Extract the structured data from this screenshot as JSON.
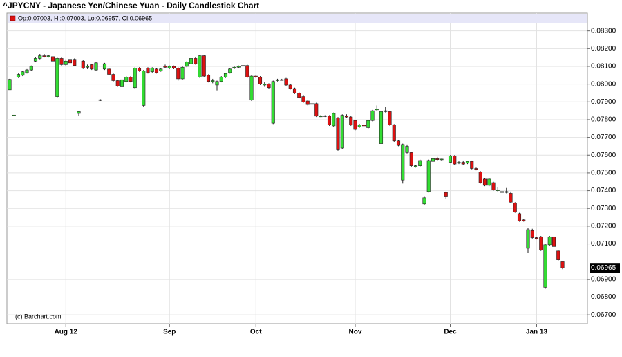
{
  "chart_data": {
    "type": "candlestick",
    "title": "^JPYCNY - Japanese Yen/Chinese Yuan - Daily Candlestick Chart",
    "ohlc_header": "Op:0.07003, Hi:0.07003, Lo:0.06957, Cl:0.06965",
    "watermark": "(c) Barchart.com",
    "up_color": "#33dd33",
    "down_color": "#dd1111",
    "grid": true,
    "ylim": [
      0.0665,
      0.084
    ],
    "yticks": [
      {
        "value": 0.083,
        "label": "0.08300"
      },
      {
        "value": 0.082,
        "label": "0.08200"
      },
      {
        "value": 0.081,
        "label": "0.08100"
      },
      {
        "value": 0.08,
        "label": "0.08000"
      },
      {
        "value": 0.079,
        "label": "0.07900"
      },
      {
        "value": 0.078,
        "label": "0.07800"
      },
      {
        "value": 0.077,
        "label": "0.07700"
      },
      {
        "value": 0.076,
        "label": "0.07600"
      },
      {
        "value": 0.075,
        "label": "0.07500"
      },
      {
        "value": 0.074,
        "label": "0.07400"
      },
      {
        "value": 0.073,
        "label": "0.07300"
      },
      {
        "value": 0.072,
        "label": "0.07200"
      },
      {
        "value": 0.071,
        "label": "0.07100"
      },
      {
        "value": 0.069,
        "label": "0.06900"
      },
      {
        "value": 0.068,
        "label": "0.06800"
      },
      {
        "value": 0.067,
        "label": "0.06700"
      }
    ],
    "last_price": {
      "value": 0.06965,
      "label": "0.06965"
    },
    "categories": [
      null,
      null,
      null,
      null,
      null,
      null,
      null,
      null,
      null,
      null,
      null,
      null,
      null,
      "Aug 12",
      null,
      null,
      null,
      null,
      null,
      null,
      null,
      null,
      null,
      null,
      null,
      null,
      null,
      null,
      null,
      null,
      null,
      null,
      null,
      null,
      null,
      null,
      null,
      "Sep",
      null,
      null,
      null,
      null,
      null,
      null,
      null,
      null,
      null,
      null,
      null,
      null,
      null,
      null,
      null,
      null,
      null,
      null,
      null,
      "Oct",
      null,
      null,
      null,
      null,
      null,
      null,
      null,
      null,
      null,
      null,
      null,
      null,
      null,
      null,
      null,
      null,
      null,
      null,
      null,
      null,
      null,
      null,
      "Nov",
      null,
      null,
      null,
      null,
      null,
      null,
      null,
      null,
      null,
      null,
      null,
      null,
      null,
      null,
      null,
      null,
      null,
      null,
      null,
      null,
      null,
      "Dec",
      null,
      null,
      null,
      null,
      null,
      null,
      null,
      null,
      null,
      null,
      null,
      null,
      null,
      null,
      null,
      null,
      null,
      null,
      null,
      "Jan 13",
      null,
      null,
      null,
      null,
      null,
      null
    ],
    "open": [
      0.07968,
      0.07822,
      0.0804,
      0.0805,
      0.08065,
      0.0808,
      0.0813,
      0.08145,
      0.0816,
      0.08155,
      0.08155,
      0.0793,
      0.08145,
      0.0811,
      0.0814,
      0.0814,
      0.07835,
      0.0813,
      0.08095,
      0.0811,
      0.0808,
      0.0791,
      0.08085,
      0.08085,
      0.08055,
      0.0802,
      0.07985,
      0.08015,
      0.0804,
      0.0798,
      0.0809,
      0.0788,
      0.0809,
      0.0807,
      0.08085,
      0.08075,
      0.081,
      0.0809,
      0.081,
      0.0809,
      0.0803,
      0.081,
      0.08115,
      0.08145,
      0.0804,
      0.0816,
      0.0805,
      0.08015,
      0.07995,
      0.08015,
      0.0804,
      0.08065,
      0.0809,
      0.08095,
      0.08105,
      0.08105,
      0.0791,
      0.08045,
      0.0804,
      0.07995,
      0.08,
      0.0778,
      0.0802,
      0.08025,
      0.0803,
      0.07995,
      0.07975,
      0.0795,
      0.0793,
      0.07905,
      0.0789,
      0.0789,
      0.0782,
      0.0782,
      0.0782,
      0.07765,
      0.0781,
      0.0764,
      0.0782,
      0.07815,
      0.07795,
      0.0776,
      0.0777,
      0.07755,
      0.07795,
      0.07855,
      0.07665,
      0.07845,
      0.07845,
      0.0777,
      0.0768,
      0.0746,
      0.07615,
      0.07615,
      0.07535,
      0.0754,
      0.07325,
      0.07395,
      0.07565,
      0.0758,
      0.07575,
      0.0739,
      0.0756,
      0.07595,
      0.07555,
      0.0756,
      0.07555,
      0.07565,
      0.07525,
      0.07505,
      0.07465,
      0.0743,
      0.07445,
      0.074,
      0.0739,
      0.0739,
      0.07385,
      0.0733,
      0.0727,
      0.07235,
      0.07075,
      0.07175,
      0.07135,
      0.0714,
      0.06855,
      0.07095,
      0.0714,
      0.0706,
      0.07003
    ],
    "high": [
      0.0803,
      0.07826,
      0.0806,
      0.08075,
      0.08085,
      0.08105,
      0.0815,
      0.0817,
      0.0817,
      0.08165,
      0.0816,
      0.0815,
      0.0815,
      0.0814,
      0.08145,
      0.08145,
      0.0785,
      0.08135,
      0.0811,
      0.08115,
      0.08125,
      0.07915,
      0.0812,
      0.0809,
      0.0806,
      0.08025,
      0.0803,
      0.08045,
      0.08045,
      0.08095,
      0.08095,
      0.0808,
      0.08095,
      0.08095,
      0.0809,
      0.0809,
      0.0811,
      0.08105,
      0.08105,
      0.08095,
      0.081,
      0.0813,
      0.0815,
      0.0815,
      0.08165,
      0.08165,
      0.08055,
      0.0803,
      0.0802,
      0.08045,
      0.08065,
      0.0809,
      0.081,
      0.08105,
      0.0811,
      0.0811,
      0.0805,
      0.0805,
      0.08045,
      0.0801,
      0.08005,
      0.0802,
      0.0803,
      0.0803,
      0.08035,
      0.08,
      0.0798,
      0.07955,
      0.07935,
      0.0791,
      0.07895,
      0.07895,
      0.07825,
      0.07825,
      0.07825,
      0.0784,
      0.07815,
      0.0783,
      0.0783,
      0.0782,
      0.078,
      0.07775,
      0.0778,
      0.078,
      0.07855,
      0.0788,
      0.07855,
      0.0787,
      0.0785,
      0.07775,
      0.07685,
      0.07665,
      0.0766,
      0.0762,
      0.07545,
      0.07575,
      0.07365,
      0.07575,
      0.0759,
      0.0759,
      0.0758,
      0.07395,
      0.076,
      0.076,
      0.0757,
      0.0757,
      0.0757,
      0.0757,
      0.0753,
      0.0751,
      0.0747,
      0.0747,
      0.0745,
      0.0742,
      0.0741,
      0.07415,
      0.07395,
      0.07335,
      0.07275,
      0.0724,
      0.0719,
      0.07185,
      0.0714,
      0.07145,
      0.071,
      0.07145,
      0.07145,
      0.07065,
      0.07003
    ],
    "low": [
      0.07968,
      0.0782,
      0.08035,
      0.08045,
      0.0806,
      0.08075,
      0.08125,
      0.0814,
      0.0815,
      0.0815,
      0.0812,
      0.07925,
      0.08105,
      0.081,
      0.08115,
      0.081,
      0.0782,
      0.08085,
      0.08085,
      0.0808,
      0.08075,
      0.07905,
      0.0808,
      0.0805,
      0.08015,
      0.07985,
      0.0798,
      0.0801,
      0.0801,
      0.07975,
      0.0807,
      0.0787,
      0.0806,
      0.08065,
      0.0806,
      0.0807,
      0.0809,
      0.08085,
      0.08085,
      0.0802,
      0.08025,
      0.08095,
      0.0811,
      0.0811,
      0.08035,
      0.0804,
      0.0801,
      0.08005,
      0.07965,
      0.0801,
      0.08035,
      0.0806,
      0.08085,
      0.0809,
      0.081,
      0.08035,
      0.07905,
      0.08035,
      0.07995,
      0.07985,
      0.07975,
      0.07775,
      0.08015,
      0.0802,
      0.0799,
      0.0797,
      0.07945,
      0.0792,
      0.07895,
      0.0788,
      0.07885,
      0.07815,
      0.07815,
      0.07815,
      0.07765,
      0.0776,
      0.07625,
      0.07635,
      0.0781,
      0.07765,
      0.0774,
      0.07755,
      0.0776,
      0.0775,
      0.0779,
      0.0785,
      0.0765,
      0.0784,
      0.07765,
      0.07675,
      0.0765,
      0.0744,
      0.0761,
      0.07535,
      0.0753,
      0.07535,
      0.0732,
      0.0739,
      0.0756,
      0.0757,
      0.0757,
      0.07355,
      0.07555,
      0.07545,
      0.0755,
      0.07545,
      0.0755,
      0.0752,
      0.07515,
      0.0744,
      0.07425,
      0.07425,
      0.074,
      0.07395,
      0.07385,
      0.07385,
      0.0733,
      0.07275,
      0.07225,
      0.07225,
      0.0705,
      0.0713,
      0.07125,
      0.0706,
      0.0685,
      0.0709,
      0.0708,
      0.07005,
      0.06957
    ],
    "close": [
      0.08027,
      0.07826,
      0.08055,
      0.0807,
      0.0808,
      0.081,
      0.08145,
      0.0816,
      0.08155,
      0.0816,
      0.0813,
      0.08145,
      0.0811,
      0.0813,
      0.0812,
      0.08105,
      0.07845,
      0.0809,
      0.081,
      0.08085,
      0.0812,
      0.07912,
      0.08115,
      0.08055,
      0.0802,
      0.0799,
      0.08025,
      0.0804,
      0.08015,
      0.0809,
      0.08075,
      0.08075,
      0.08065,
      0.0809,
      0.08065,
      0.08085,
      0.08095,
      0.081,
      0.0809,
      0.0803,
      0.08095,
      0.08125,
      0.08145,
      0.08115,
      0.0816,
      0.08045,
      0.08015,
      0.0802,
      0.08015,
      0.0804,
      0.0806,
      0.08085,
      0.08095,
      0.081,
      0.08102,
      0.0804,
      0.08045,
      0.0804,
      0.08,
      0.08,
      0.0798,
      0.08015,
      0.08025,
      0.08025,
      0.07995,
      0.07975,
      0.0795,
      0.07925,
      0.079,
      0.07885,
      0.0789,
      0.0782,
      0.0782,
      0.07822,
      0.0777,
      0.07835,
      0.0763,
      0.07825,
      0.07815,
      0.0777,
      0.07745,
      0.0777,
      0.07765,
      0.07795,
      0.0785,
      0.0786,
      0.07845,
      0.0785,
      0.0777,
      0.0768,
      0.07655,
      0.0766,
      0.0765,
      0.0754,
      0.0754,
      0.0757,
      0.0736,
      0.0757,
      0.0758,
      0.07575,
      0.07578,
      0.07365,
      0.07595,
      0.0755,
      0.0756,
      0.0755,
      0.07565,
      0.07525,
      0.0752,
      0.07445,
      0.0743,
      0.07465,
      0.07405,
      0.07405,
      0.07395,
      0.07395,
      0.07335,
      0.0728,
      0.0723,
      0.0723,
      0.0718,
      0.07135,
      0.0713,
      0.07065,
      0.07095,
      0.0714,
      0.07085,
      0.0701,
      0.06965
    ]
  }
}
